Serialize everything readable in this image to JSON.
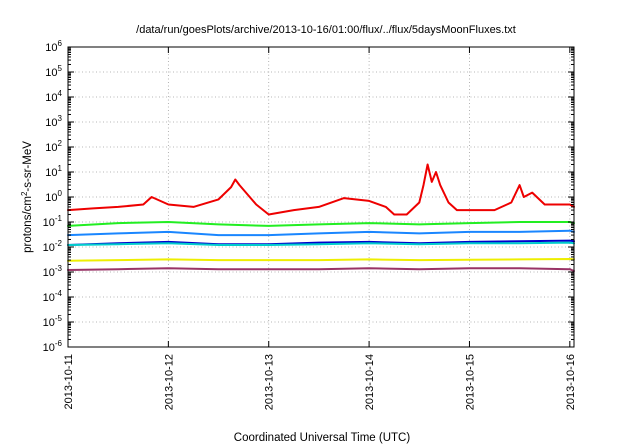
{
  "chart_data": {
    "type": "line",
    "title": "/data/run/goesPlots/archive/2013-10-16/01:00/flux/../flux/5daysMoonFluxes.txt",
    "xlabel": "Coordinated Universal Time (UTC)",
    "ylabel_base": "protons/cm",
    "ylabel_sup": "2",
    "ylabel_rest": "-s-sr-MeV",
    "y_scale": "log",
    "ylim": [
      1e-06,
      1000000.0
    ],
    "y_ticks": [
      {
        "exp": -6,
        "label_base": "10",
        "label_exp": "-6"
      },
      {
        "exp": -5,
        "label_base": "10",
        "label_exp": "-5"
      },
      {
        "exp": -4,
        "label_base": "10",
        "label_exp": "-4"
      },
      {
        "exp": -3,
        "label_base": "10",
        "label_exp": "-3"
      },
      {
        "exp": -2,
        "label_base": "10",
        "label_exp": "-2"
      },
      {
        "exp": -1,
        "label_base": "10",
        "label_exp": "-1"
      },
      {
        "exp": 0,
        "label_base": "10",
        "label_exp": "0"
      },
      {
        "exp": 1,
        "label_base": "10",
        "label_exp": "1"
      },
      {
        "exp": 2,
        "label_base": "10",
        "label_exp": "2"
      },
      {
        "exp": 3,
        "label_base": "10",
        "label_exp": "3"
      },
      {
        "exp": 4,
        "label_base": "10",
        "label_exp": "4"
      },
      {
        "exp": 5,
        "label_base": "10",
        "label_exp": "5"
      },
      {
        "exp": 6,
        "label_base": "10",
        "label_exp": "6"
      }
    ],
    "x_ticks": [
      {
        "day": 0,
        "label": "2013-10-11"
      },
      {
        "day": 1,
        "label": "2013-10-12"
      },
      {
        "day": 2,
        "label": "2013-10-13"
      },
      {
        "day": 3,
        "label": "2013-10-14"
      },
      {
        "day": 4,
        "label": "2013-10-15"
      },
      {
        "day": 5,
        "label": "2013-10-16"
      }
    ],
    "xlim": [
      "2013-10-11 00:00",
      "2013-10-16 01:00"
    ],
    "grid": true,
    "series": [
      {
        "color": "#ee0000",
        "x": [
          "2013-10-11 00:00",
          "2013-10-11 06:00",
          "2013-10-11 12:00",
          "2013-10-11 18:00",
          "2013-10-11 20:00",
          "2013-10-12 00:00",
          "2013-10-12 06:00",
          "2013-10-12 12:00",
          "2013-10-12 15:00",
          "2013-10-12 16:00",
          "2013-10-12 17:00",
          "2013-10-12 21:00",
          "2013-10-13 00:00",
          "2013-10-13 06:00",
          "2013-10-13 12:00",
          "2013-10-13 18:00",
          "2013-10-14 00:00",
          "2013-10-14 04:00",
          "2013-10-14 06:00",
          "2013-10-14 09:00",
          "2013-10-14 12:00",
          "2013-10-14 13:00",
          "2013-10-14 14:00",
          "2013-10-14 15:00",
          "2013-10-14 16:00",
          "2013-10-14 17:00",
          "2013-10-14 19:00",
          "2013-10-14 21:00",
          "2013-10-15 00:00",
          "2013-10-15 06:00",
          "2013-10-15 10:00",
          "2013-10-15 12:00",
          "2013-10-15 13:00",
          "2013-10-15 15:00",
          "2013-10-15 18:00",
          "2013-10-16 00:00",
          "2013-10-16 01:00"
        ],
        "y": [
          0.3,
          0.35,
          0.4,
          0.5,
          1.0,
          0.5,
          0.4,
          0.8,
          2.5,
          5.0,
          3.0,
          0.5,
          0.2,
          0.3,
          0.4,
          0.9,
          0.7,
          0.4,
          0.2,
          0.2,
          0.6,
          3.0,
          20,
          4.0,
          10,
          3.0,
          0.6,
          0.3,
          0.3,
          0.3,
          0.6,
          3.0,
          1.0,
          1.5,
          0.5,
          0.5,
          0.4
        ]
      },
      {
        "color": "#22ee22",
        "x": [
          "2013-10-11 00:00",
          "2013-10-11 12:00",
          "2013-10-12 00:00",
          "2013-10-12 12:00",
          "2013-10-13 00:00",
          "2013-10-13 12:00",
          "2013-10-14 00:00",
          "2013-10-14 12:00",
          "2013-10-15 00:00",
          "2013-10-15 12:00",
          "2013-10-16 00:00",
          "2013-10-16 01:00"
        ],
        "y": [
          0.07,
          0.09,
          0.1,
          0.08,
          0.07,
          0.08,
          0.09,
          0.08,
          0.09,
          0.1,
          0.1,
          0.09
        ]
      },
      {
        "color": "#1a86ff",
        "x": [
          "2013-10-11 00:00",
          "2013-10-11 12:00",
          "2013-10-12 00:00",
          "2013-10-12 12:00",
          "2013-10-13 00:00",
          "2013-10-13 12:00",
          "2013-10-14 00:00",
          "2013-10-14 12:00",
          "2013-10-15 00:00",
          "2013-10-15 12:00",
          "2013-10-16 00:00",
          "2013-10-16 01:00"
        ],
        "y": [
          0.03,
          0.035,
          0.04,
          0.03,
          0.03,
          0.035,
          0.04,
          0.035,
          0.04,
          0.04,
          0.045,
          0.04
        ]
      },
      {
        "color": "#00cccc",
        "x": [
          "2013-10-11 00:00",
          "2013-10-11 12:00",
          "2013-10-12 00:00",
          "2013-10-12 12:00",
          "2013-10-13 00:00",
          "2013-10-13 12:00",
          "2013-10-14 00:00",
          "2013-10-14 12:00",
          "2013-10-15 00:00",
          "2013-10-15 12:00",
          "2013-10-16 00:00",
          "2013-10-16 01:00"
        ],
        "y": [
          0.012,
          0.013,
          0.014,
          0.012,
          0.012,
          0.013,
          0.014,
          0.013,
          0.014,
          0.014,
          0.015,
          0.014
        ]
      },
      {
        "color": "#0000cc",
        "x": [
          "2013-10-11 00:00",
          "2013-10-11 12:00",
          "2013-10-12 00:00",
          "2013-10-12 12:00",
          "2013-10-13 00:00",
          "2013-10-13 12:00",
          "2013-10-14 00:00",
          "2013-10-14 12:00",
          "2013-10-15 00:00",
          "2013-10-15 12:00",
          "2013-10-16 00:00",
          "2013-10-16 01:00"
        ],
        "y": [
          0.012,
          0.014,
          0.016,
          0.013,
          0.013,
          0.015,
          0.016,
          0.014,
          0.016,
          0.017,
          0.018,
          0.017
        ]
      },
      {
        "color": "#eeee00",
        "x": [
          "2013-10-11 00:00",
          "2013-10-11 12:00",
          "2013-10-12 00:00",
          "2013-10-12 12:00",
          "2013-10-13 00:00",
          "2013-10-13 12:00",
          "2013-10-14 00:00",
          "2013-10-14 12:00",
          "2013-10-15 00:00",
          "2013-10-15 12:00",
          "2013-10-16 00:00",
          "2013-10-16 01:00"
        ],
        "y": [
          0.0028,
          0.003,
          0.0032,
          0.003,
          0.003,
          0.003,
          0.0032,
          0.003,
          0.0031,
          0.0032,
          0.0033,
          0.0032
        ]
      },
      {
        "color": "#993366",
        "x": [
          "2013-10-11 00:00",
          "2013-10-11 12:00",
          "2013-10-12 00:00",
          "2013-10-12 12:00",
          "2013-10-13 00:00",
          "2013-10-13 12:00",
          "2013-10-14 00:00",
          "2013-10-14 12:00",
          "2013-10-15 00:00",
          "2013-10-15 12:00",
          "2013-10-16 00:00",
          "2013-10-16 01:00"
        ],
        "y": [
          0.0012,
          0.0013,
          0.0014,
          0.0013,
          0.0013,
          0.0013,
          0.0014,
          0.0013,
          0.0014,
          0.0014,
          0.0013,
          0.0011
        ]
      }
    ]
  }
}
